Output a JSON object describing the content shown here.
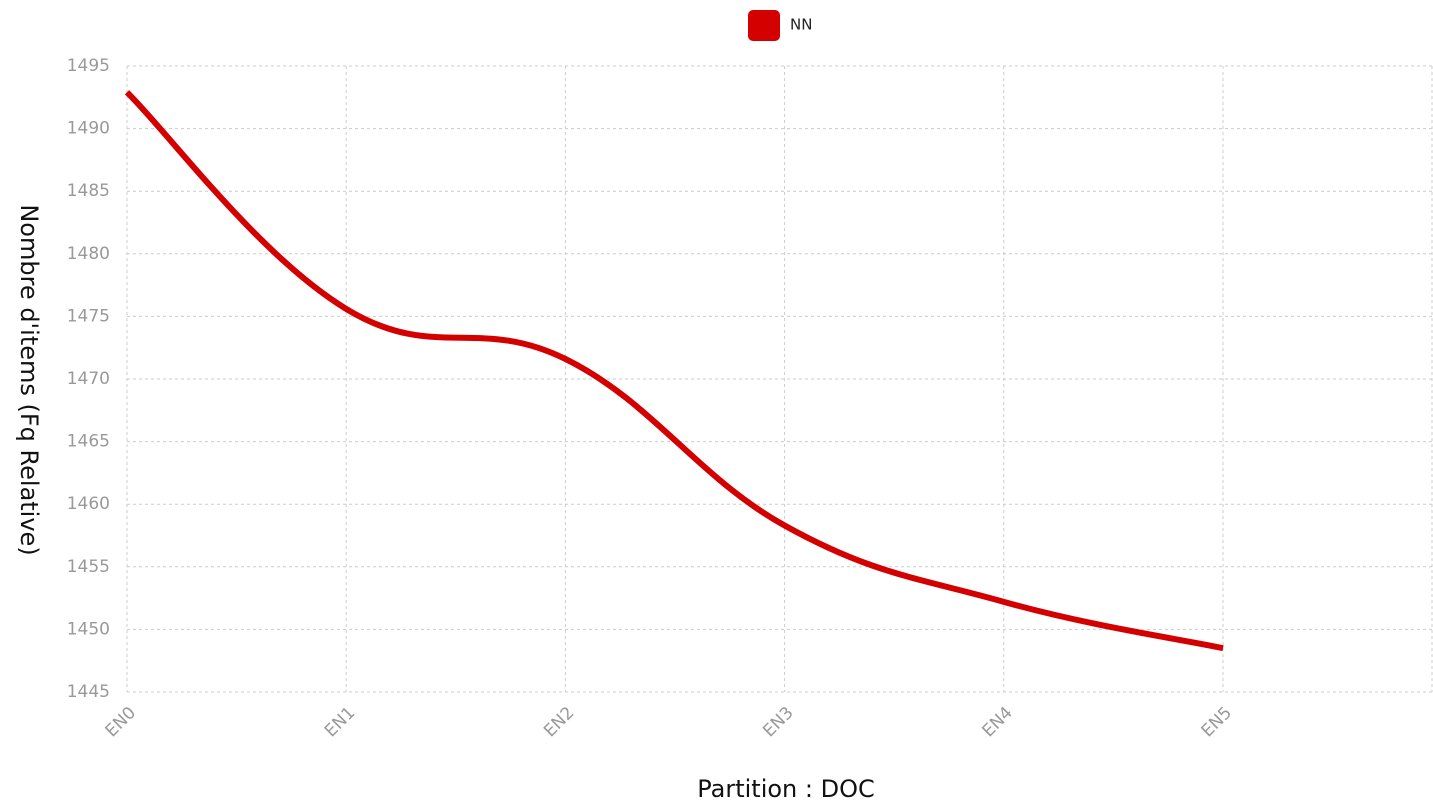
{
  "chart_data": {
    "type": "line",
    "x_label": "Partition : DOC",
    "y_label": "Nombre d'items (Fq Relative)",
    "categories": [
      "EN0",
      "EN1",
      "EN2",
      "EN3",
      "EN4",
      "EN5"
    ],
    "series": [
      {
        "name": "NN",
        "color": "#d40000",
        "values": [
          1492.9,
          1475.6,
          1471.6,
          1458.3,
          1452.2,
          1448.5
        ]
      }
    ],
    "ylim": [
      1445,
      1495
    ],
    "yticks": [
      1445,
      1450,
      1455,
      1460,
      1465,
      1470,
      1475,
      1480,
      1485,
      1490,
      1495
    ],
    "grid": true,
    "legend": "top"
  }
}
